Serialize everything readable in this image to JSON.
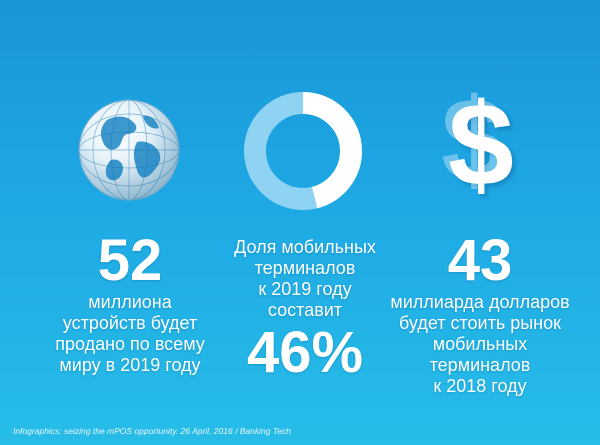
{
  "icons": {
    "globe": "globe-icon",
    "donut": "donut-chart-icon",
    "dollar": "dollar-icon",
    "dollar_glyph": "$"
  },
  "stats": {
    "devices": {
      "number": "52",
      "lines": [
        "миллиона",
        "устройств будет",
        "продано по всему",
        "миру в 2019 году"
      ]
    },
    "share": {
      "lines": [
        "Доля мобильных",
        "терминалов",
        "к 2019 году",
        "составит"
      ],
      "number": "46%",
      "fraction": 0.46
    },
    "market": {
      "number": "43",
      "lines": [
        "миллиарда долларов",
        "будет стоить рынок",
        "мобильных",
        "терминалов",
        "к 2018 году"
      ]
    }
  },
  "source": "Infographics: seizing the mPOS opportunity. 26 April, 2016 / Banking Tech",
  "colors": {
    "background_top": "#1a96d8",
    "background_bottom": "#27bde8",
    "ring_track": "#8fd3f3",
    "ring_fill": "#ffffff"
  }
}
